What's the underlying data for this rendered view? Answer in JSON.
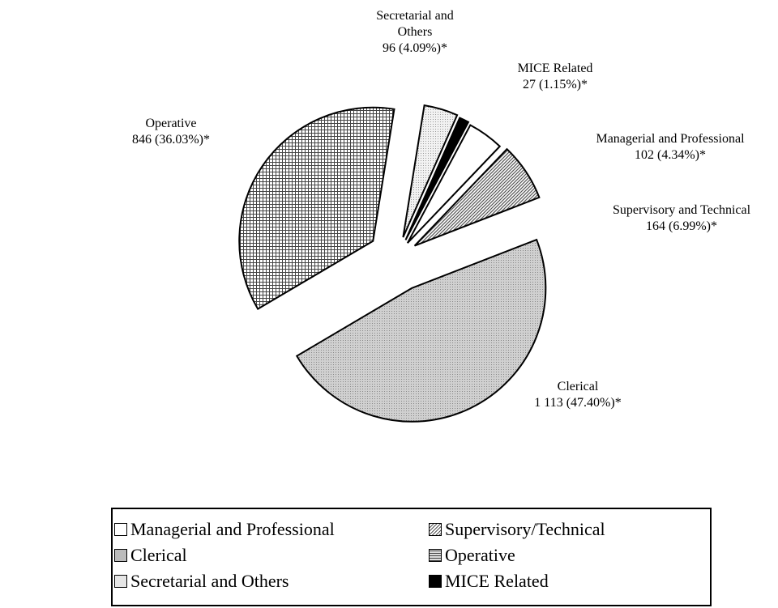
{
  "chart_data": {
    "type": "pie",
    "categories": [
      "Managerial and Professional",
      "Supervisory/Technical",
      "Clerical",
      "Operative",
      "Secretarial and Others",
      "MICE Related"
    ],
    "slice_names": [
      "Managerial and Professional",
      "Supervisory and Technical",
      "Clerical",
      "Operative",
      "Secretarial and Others",
      "MICE Related"
    ],
    "values": [
      102,
      164,
      1113,
      846,
      96,
      27
    ],
    "value_labels": [
      "102 (4.34%)*",
      "164 (6.99%)*",
      "1 113 (47.40%)*",
      "846 (36.03%)*",
      "96 (4.09%)*",
      "27 (1.15%)*"
    ]
  }
}
